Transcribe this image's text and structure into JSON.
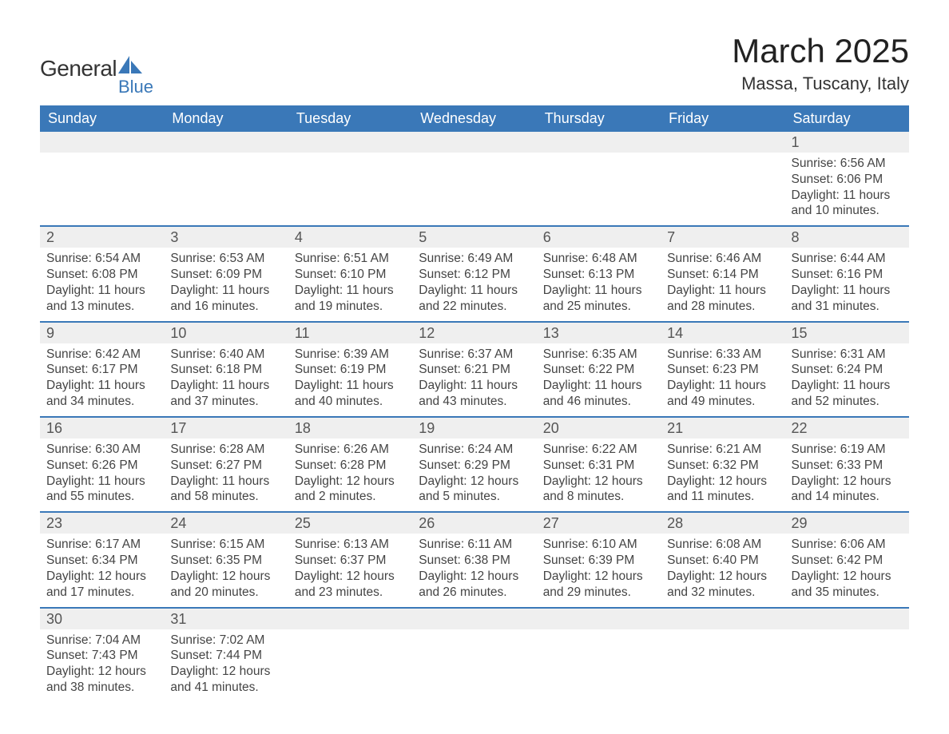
{
  "brand": {
    "line1a": "General",
    "line1b_color": "#3a78b8",
    "line2": "Blue"
  },
  "title": "March 2025",
  "location": "Massa, Tuscany, Italy",
  "colors": {
    "header_bg": "#3a78b8",
    "header_fg": "#ffffff",
    "daynum_bg": "#efefef",
    "border": "#3a78b8"
  },
  "weekdays": [
    "Sunday",
    "Monday",
    "Tuesday",
    "Wednesday",
    "Thursday",
    "Friday",
    "Saturday"
  ],
  "weeks": [
    [
      null,
      null,
      null,
      null,
      null,
      null,
      {
        "n": "1",
        "sr": "6:56 AM",
        "ss": "6:06 PM",
        "dl": "11 hours and 10 minutes."
      }
    ],
    [
      {
        "n": "2",
        "sr": "6:54 AM",
        "ss": "6:08 PM",
        "dl": "11 hours and 13 minutes."
      },
      {
        "n": "3",
        "sr": "6:53 AM",
        "ss": "6:09 PM",
        "dl": "11 hours and 16 minutes."
      },
      {
        "n": "4",
        "sr": "6:51 AM",
        "ss": "6:10 PM",
        "dl": "11 hours and 19 minutes."
      },
      {
        "n": "5",
        "sr": "6:49 AM",
        "ss": "6:12 PM",
        "dl": "11 hours and 22 minutes."
      },
      {
        "n": "6",
        "sr": "6:48 AM",
        "ss": "6:13 PM",
        "dl": "11 hours and 25 minutes."
      },
      {
        "n": "7",
        "sr": "6:46 AM",
        "ss": "6:14 PM",
        "dl": "11 hours and 28 minutes."
      },
      {
        "n": "8",
        "sr": "6:44 AM",
        "ss": "6:16 PM",
        "dl": "11 hours and 31 minutes."
      }
    ],
    [
      {
        "n": "9",
        "sr": "6:42 AM",
        "ss": "6:17 PM",
        "dl": "11 hours and 34 minutes."
      },
      {
        "n": "10",
        "sr": "6:40 AM",
        "ss": "6:18 PM",
        "dl": "11 hours and 37 minutes."
      },
      {
        "n": "11",
        "sr": "6:39 AM",
        "ss": "6:19 PM",
        "dl": "11 hours and 40 minutes."
      },
      {
        "n": "12",
        "sr": "6:37 AM",
        "ss": "6:21 PM",
        "dl": "11 hours and 43 minutes."
      },
      {
        "n": "13",
        "sr": "6:35 AM",
        "ss": "6:22 PM",
        "dl": "11 hours and 46 minutes."
      },
      {
        "n": "14",
        "sr": "6:33 AM",
        "ss": "6:23 PM",
        "dl": "11 hours and 49 minutes."
      },
      {
        "n": "15",
        "sr": "6:31 AM",
        "ss": "6:24 PM",
        "dl": "11 hours and 52 minutes."
      }
    ],
    [
      {
        "n": "16",
        "sr": "6:30 AM",
        "ss": "6:26 PM",
        "dl": "11 hours and 55 minutes."
      },
      {
        "n": "17",
        "sr": "6:28 AM",
        "ss": "6:27 PM",
        "dl": "11 hours and 58 minutes."
      },
      {
        "n": "18",
        "sr": "6:26 AM",
        "ss": "6:28 PM",
        "dl": "12 hours and 2 minutes."
      },
      {
        "n": "19",
        "sr": "6:24 AM",
        "ss": "6:29 PM",
        "dl": "12 hours and 5 minutes."
      },
      {
        "n": "20",
        "sr": "6:22 AM",
        "ss": "6:31 PM",
        "dl": "12 hours and 8 minutes."
      },
      {
        "n": "21",
        "sr": "6:21 AM",
        "ss": "6:32 PM",
        "dl": "12 hours and 11 minutes."
      },
      {
        "n": "22",
        "sr": "6:19 AM",
        "ss": "6:33 PM",
        "dl": "12 hours and 14 minutes."
      }
    ],
    [
      {
        "n": "23",
        "sr": "6:17 AM",
        "ss": "6:34 PM",
        "dl": "12 hours and 17 minutes."
      },
      {
        "n": "24",
        "sr": "6:15 AM",
        "ss": "6:35 PM",
        "dl": "12 hours and 20 minutes."
      },
      {
        "n": "25",
        "sr": "6:13 AM",
        "ss": "6:37 PM",
        "dl": "12 hours and 23 minutes."
      },
      {
        "n": "26",
        "sr": "6:11 AM",
        "ss": "6:38 PM",
        "dl": "12 hours and 26 minutes."
      },
      {
        "n": "27",
        "sr": "6:10 AM",
        "ss": "6:39 PM",
        "dl": "12 hours and 29 minutes."
      },
      {
        "n": "28",
        "sr": "6:08 AM",
        "ss": "6:40 PM",
        "dl": "12 hours and 32 minutes."
      },
      {
        "n": "29",
        "sr": "6:06 AM",
        "ss": "6:42 PM",
        "dl": "12 hours and 35 minutes."
      }
    ],
    [
      {
        "n": "30",
        "sr": "7:04 AM",
        "ss": "7:43 PM",
        "dl": "12 hours and 38 minutes."
      },
      {
        "n": "31",
        "sr": "7:02 AM",
        "ss": "7:44 PM",
        "dl": "12 hours and 41 minutes."
      },
      null,
      null,
      null,
      null,
      null
    ]
  ],
  "labels": {
    "sunrise": "Sunrise: ",
    "sunset": "Sunset: ",
    "daylight": "Daylight: "
  }
}
